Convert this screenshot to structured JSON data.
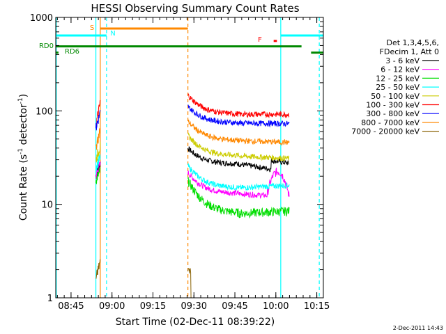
{
  "chart_data": {
    "type": "line",
    "title": "HESSI Observing Summary Count Rates",
    "xlabel": "Start Time (02-Dec-11 08:39:22)",
    "ylabel_main": "Count Rate (s",
    "ylabel_sup1": "-1",
    "ylabel_mid": " detector",
    "ylabel_sup2": "-1",
    "ylabel_end": ")",
    "yscale": "log",
    "ylim": [
      1,
      1000
    ],
    "xlim_minutes": [
      0,
      98
    ],
    "x_ticks": [
      {
        "label": "08:45",
        "minute": 5.6
      },
      {
        "label": "09:00",
        "minute": 20.6
      },
      {
        "label": "09:15",
        "minute": 35.6
      },
      {
        "label": "09:30",
        "minute": 50.6
      },
      {
        "label": "09:45",
        "minute": 65.6
      },
      {
        "label": "10:00",
        "minute": 80.6
      },
      {
        "label": "10:15",
        "minute": 95.6
      }
    ],
    "y_ticks": [
      {
        "label": "1",
        "value": 1
      },
      {
        "label": "10",
        "value": 10
      },
      {
        "label": "100",
        "value": 100
      },
      {
        "label": "1000",
        "value": 1000
      }
    ],
    "legend": {
      "header1": "Det 1,3,4,5,6,",
      "header2": "FDecim 1, Att 0",
      "entries": [
        {
          "label": "3 - 6 keV",
          "color": "#000000"
        },
        {
          "label": "6 - 12 keV",
          "color": "#ff00ff"
        },
        {
          "label": "12 - 25 keV",
          "color": "#00dd00"
        },
        {
          "label": "25 - 50 keV",
          "color": "#00ffff"
        },
        {
          "label": "50 - 100 keV",
          "color": "#cccc00"
        },
        {
          "label": "100 - 300 keV",
          "color": "#ff0000"
        },
        {
          "label": "300 - 800 keV",
          "color": "#0000ff"
        },
        {
          "label": "800 - 7000 keV",
          "color": "#ff8800"
        },
        {
          "label": "7000 - 20000 keV",
          "color": "#8b6508"
        }
      ]
    },
    "flag_bars": [
      {
        "label": "S",
        "color": "#ff8800",
        "start_min": 16.3,
        "end_min": 48.4,
        "value": 760
      },
      {
        "label": "N",
        "color": "#00ffff",
        "start_min": 0,
        "end_min": 18.6,
        "value": 640
      },
      {
        "label": "N",
        "color": "#00ffff",
        "start_min": 82.4,
        "end_min": 98,
        "value": 640
      },
      {
        "label": "RD0",
        "color": "#008800",
        "start_min": 0,
        "end_min": 90,
        "value": 490
      },
      {
        "label": "RD6",
        "color": "#008800",
        "start_min": 0,
        "end_min": 1,
        "value": 420
      },
      {
        "label": "RD6",
        "color": "#008800",
        "start_min": 93.5,
        "end_min": 98,
        "value": 420
      },
      {
        "label": "F",
        "color": "#ff0000",
        "start_min": 79.8,
        "end_min": 81.0,
        "value": 560
      }
    ],
    "vertical_markers": [
      {
        "type": "orange-solid",
        "minute": 16.3
      },
      {
        "type": "orange-dashed",
        "minute": 48.4
      },
      {
        "type": "cyan-solid",
        "minute": 0.2
      },
      {
        "type": "cyan-solid",
        "minute": 14.7
      },
      {
        "type": "cyan-dashed",
        "minute": 18.6
      },
      {
        "type": "cyan-solid",
        "minute": 82.4
      },
      {
        "type": "cyan-dashed",
        "minute": 96.5
      }
    ],
    "segments": [
      {
        "start_min": 14.7,
        "end_min": 16.3
      },
      {
        "start_min": 48.4,
        "end_min": 85.5
      }
    ],
    "series": [
      {
        "name": "3 - 6 keV",
        "color": "#000000",
        "seg1": [
          20,
          28
        ],
        "seg2": [
          40,
          27,
          22
        ]
      },
      {
        "name": "6 - 12 keV",
        "color": "#ff00ff",
        "seg1": [
          20,
          27
        ],
        "seg2": [
          22,
          13,
          12
        ]
      },
      {
        "name": "12 - 25 keV",
        "color": "#00dd00",
        "seg1": [
          18,
          23
        ],
        "seg2": [
          18,
          8,
          8.5
        ]
      },
      {
        "name": "25 - 50 keV",
        "color": "#00ffff",
        "seg1": [
          25,
          32
        ],
        "seg2": [
          26,
          15,
          16
        ]
      },
      {
        "name": "50 - 100 keV",
        "color": "#cccc00",
        "seg1": [
          30,
          42
        ],
        "seg2": [
          55,
          33,
          31
        ]
      },
      {
        "name": "100 - 300 keV",
        "color": "#ff0000",
        "seg1": [
          70,
          125
        ],
        "seg2": [
          148,
          92,
          92
        ]
      },
      {
        "name": "300 - 800 keV",
        "color": "#0000ff",
        "seg1": [
          65,
          95
        ],
        "seg2": [
          112,
          74,
          73
        ]
      },
      {
        "name": "800 - 7000 keV",
        "color": "#ff8800",
        "seg1": [
          40,
          65
        ],
        "seg2": [
          78,
          48,
          46
        ]
      },
      {
        "name": "7000 - 20000 keV",
        "color": "#8b6508",
        "seg1": [
          1.6,
          2.5
        ],
        "seg2": [
          2,
          1,
          1
        ]
      }
    ],
    "timestamp": "2-Dec-2011 14:43"
  }
}
